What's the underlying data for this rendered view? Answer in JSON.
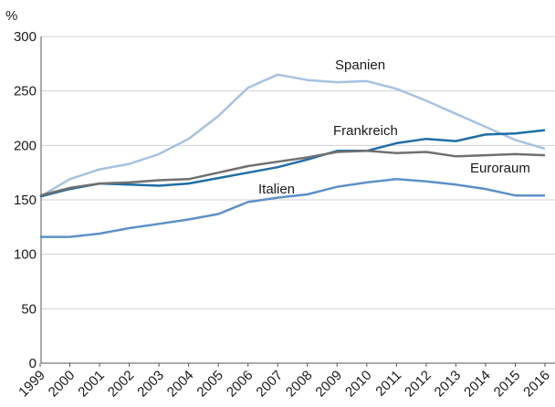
{
  "chart_data": {
    "type": "line",
    "y_label": "%",
    "categories": [
      "1999",
      "2000",
      "2001",
      "2002",
      "2003",
      "2004",
      "2005",
      "2006",
      "2007",
      "2008",
      "2009",
      "2010",
      "2011",
      "2012",
      "2013",
      "2014",
      "2015",
      "2016"
    ],
    "series": [
      {
        "name": "Spanien",
        "color": "#a6c2e2",
        "values": [
          153,
          169,
          178,
          183,
          192,
          206,
          227,
          253,
          265,
          260,
          258,
          259,
          252,
          241,
          229,
          217,
          205,
          197
        ]
      },
      {
        "name": "Frankreich",
        "color": "#1f6ea6",
        "values": [
          153,
          160,
          165,
          164,
          163,
          165,
          170,
          175,
          180,
          187,
          195,
          195,
          202,
          206,
          204,
          210,
          211,
          214
        ]
      },
      {
        "name": "Euroraum",
        "color": "#707070",
        "values": [
          154,
          161,
          165,
          166,
          168,
          169,
          175,
          181,
          185,
          189,
          194,
          195,
          193,
          194,
          190,
          191,
          192,
          191
        ]
      },
      {
        "name": "Italien",
        "color": "#5e90c8",
        "values": [
          116,
          116,
          119,
          124,
          128,
          132,
          137,
          148,
          152,
          155,
          162,
          166,
          169,
          167,
          164,
          160,
          154,
          154
        ]
      }
    ],
    "ylim": [
      0,
      300
    ],
    "yticks": [
      0,
      50,
      100,
      150,
      200,
      250,
      300
    ],
    "grid": true
  }
}
